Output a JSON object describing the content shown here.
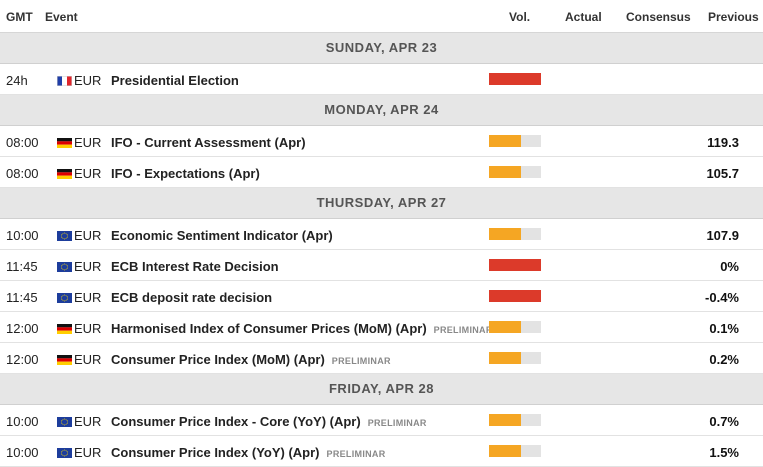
{
  "columns": {
    "gmt": "GMT",
    "event": "Event",
    "vol": "Vol.",
    "actual": "Actual",
    "consensus": "Consensus",
    "previous": "Previous"
  },
  "colors": {
    "high": "#dc3a2a",
    "medium": "#f5a623",
    "empty": "#e3e3e3"
  },
  "days": [
    {
      "label": "SUNDAY, APR 23",
      "rows": [
        {
          "time": "24h",
          "flag": "france-flag-icon",
          "currency": "EUR",
          "event": "Presidential Election",
          "tag": "",
          "volatility": "high",
          "actual": "",
          "consensus": "",
          "previous": ""
        }
      ]
    },
    {
      "label": "MONDAY, APR 24",
      "rows": [
        {
          "time": "08:00",
          "flag": "germany-flag-icon",
          "currency": "EUR",
          "event": "IFO - Current Assessment (Apr)",
          "tag": "",
          "volatility": "medium",
          "actual": "",
          "consensus": "",
          "previous": "119.3"
        },
        {
          "time": "08:00",
          "flag": "germany-flag-icon",
          "currency": "EUR",
          "event": "IFO - Expectations (Apr)",
          "tag": "",
          "volatility": "medium",
          "actual": "",
          "consensus": "",
          "previous": "105.7"
        }
      ]
    },
    {
      "label": "THURSDAY, APR 27",
      "rows": [
        {
          "time": "10:00",
          "flag": "eu-flag-icon",
          "currency": "EUR",
          "event": "Economic Sentiment Indicator (Apr)",
          "tag": "",
          "volatility": "medium",
          "actual": "",
          "consensus": "",
          "previous": "107.9"
        },
        {
          "time": "11:45",
          "flag": "eu-flag-icon",
          "currency": "EUR",
          "event": "ECB Interest Rate Decision",
          "tag": "",
          "volatility": "high",
          "actual": "",
          "consensus": "",
          "previous": "0%"
        },
        {
          "time": "11:45",
          "flag": "eu-flag-icon",
          "currency": "EUR",
          "event": "ECB deposit rate decision",
          "tag": "",
          "volatility": "high",
          "actual": "",
          "consensus": "",
          "previous": "-0.4%"
        },
        {
          "time": "12:00",
          "flag": "germany-flag-icon",
          "currency": "EUR",
          "event": "Harmonised Index of Consumer Prices (MoM) (Apr)",
          "tag": "PRELIMINAR",
          "volatility": "medium",
          "actual": "",
          "consensus": "",
          "previous": "0.1%"
        },
        {
          "time": "12:00",
          "flag": "germany-flag-icon",
          "currency": "EUR",
          "event": "Consumer Price Index (MoM) (Apr)",
          "tag": "PRELIMINAR",
          "volatility": "medium",
          "actual": "",
          "consensus": "",
          "previous": "0.2%"
        }
      ]
    },
    {
      "label": "FRIDAY, APR 28",
      "rows": [
        {
          "time": "10:00",
          "flag": "eu-flag-icon",
          "currency": "EUR",
          "event": "Consumer Price Index - Core (YoY) (Apr)",
          "tag": "PRELIMINAR",
          "volatility": "medium",
          "actual": "",
          "consensus": "",
          "previous": "0.7%"
        },
        {
          "time": "10:00",
          "flag": "eu-flag-icon",
          "currency": "EUR",
          "event": "Consumer Price Index (YoY) (Apr)",
          "tag": "PRELIMINAR",
          "volatility": "medium",
          "actual": "",
          "consensus": "",
          "previous": "1.5%"
        }
      ]
    }
  ]
}
